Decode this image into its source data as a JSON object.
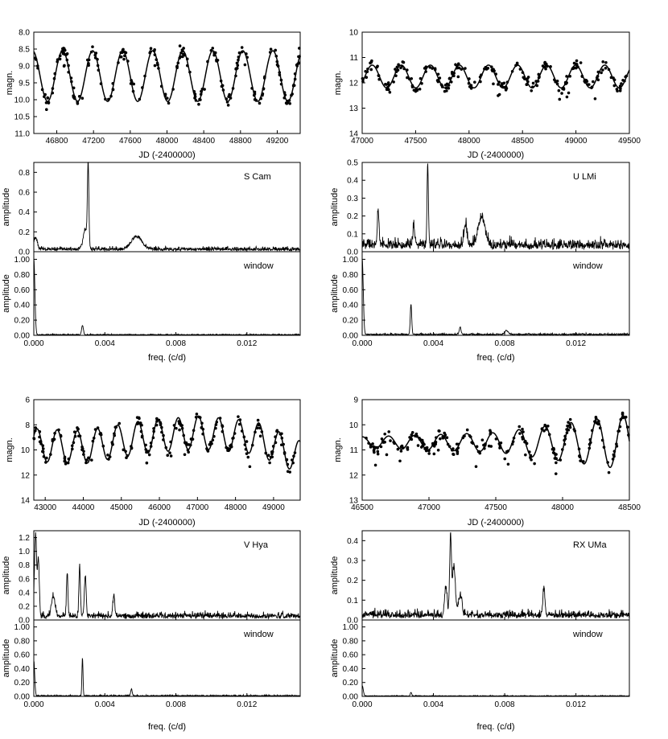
{
  "chart_data": [
    {
      "type": "scatter",
      "star": "S Cam",
      "xlabel": "JD (-2400000)",
      "ylabel": "magn.",
      "xlim": [
        46550,
        49450
      ],
      "ylim": [
        8.0,
        11.0
      ],
      "y_inverted": true,
      "xticks": [
        46800,
        47200,
        47600,
        48000,
        48400,
        48800,
        49200
      ],
      "yticks": [
        8.0,
        8.5,
        9.0,
        9.5,
        10.0,
        10.5,
        11.0
      ],
      "ytick_labels": [
        "8.0",
        "8.5",
        "9.0",
        "9.5",
        "10.0",
        "10.5",
        "11.0"
      ],
      "curve": {
        "mean": 9.3,
        "components": [
          {
            "period": 327,
            "amp": 0.75,
            "phase": 46700
          }
        ]
      },
      "spectrum": {
        "label": "S Cam",
        "xlabel": "freq. (c/d)",
        "ylabel": "amplitude",
        "xlim": [
          0,
          0.015
        ],
        "ylim": [
          0,
          0.9
        ],
        "yticks": [
          0.0,
          0.2,
          0.4,
          0.6,
          0.8
        ],
        "ytick_labels": [
          "0.0",
          "0.2",
          "0.4",
          "0.6",
          "0.8"
        ],
        "noise": 0.03,
        "peaks": [
          {
            "f": 0.00306,
            "a": 0.82,
            "w": 4e-05
          },
          {
            "f": 0.0029,
            "a": 0.2,
            "w": 0.00012
          },
          {
            "f": 0.0058,
            "a": 0.13,
            "w": 0.0003
          },
          {
            "f": 0.0001,
            "a": 0.12,
            "w": 0.0001
          }
        ]
      },
      "window": {
        "label": "window",
        "xlabel": "freq. (c/d)",
        "ylabel": "amplitude",
        "xlim": [
          0,
          0.015
        ],
        "ylim": [
          0,
          1.1
        ],
        "yticks": [
          0.0,
          0.2,
          0.4,
          0.6,
          0.8,
          1.0
        ],
        "ytick_labels": [
          "0.00",
          "0.20",
          "0.40",
          "0.60",
          "0.80",
          "1.00"
        ],
        "xticks": [
          0.0,
          0.004,
          0.008,
          0.012
        ],
        "xtick_labels": [
          "0.000",
          "0.004",
          "0.008",
          "0.012"
        ],
        "noise": 0.01,
        "peaks": [
          {
            "f": 0.0,
            "a": 1.0,
            "w": 6e-05
          },
          {
            "f": 0.00274,
            "a": 0.12,
            "w": 5e-05
          }
        ]
      }
    },
    {
      "type": "scatter",
      "star": "U LMi",
      "xlabel": "JD (-2400000)",
      "ylabel": "magn.",
      "xlim": [
        47000,
        49500
      ],
      "ylim": [
        10,
        14
      ],
      "y_inverted": true,
      "xticks": [
        47000,
        47500,
        48000,
        48500,
        49000,
        49500
      ],
      "yticks": [
        10,
        11,
        12,
        13,
        14
      ],
      "ytick_labels": [
        "10",
        "11",
        "12",
        "13",
        "14"
      ],
      "curve": {
        "mean": 11.75,
        "components": [
          {
            "period": 272,
            "amp": 0.45,
            "phase": 47230
          }
        ]
      },
      "spectrum": {
        "label": "U LMi",
        "xlabel": "freq. (c/d)",
        "ylabel": "amplitude",
        "xlim": [
          0,
          0.015
        ],
        "ylim": [
          0,
          0.5
        ],
        "yticks": [
          0.0,
          0.1,
          0.2,
          0.3,
          0.4,
          0.5
        ],
        "ytick_labels": [
          "0.0",
          "0.1",
          "0.2",
          "0.3",
          "0.4",
          "0.5"
        ],
        "noise": 0.045,
        "peaks": [
          {
            "f": 0.00368,
            "a": 0.44,
            "w": 4e-05
          },
          {
            "f": 0.0009,
            "a": 0.18,
            "w": 5e-05
          },
          {
            "f": 0.0067,
            "a": 0.15,
            "w": 0.0002
          },
          {
            "f": 0.0029,
            "a": 0.12,
            "w": 5e-05
          },
          {
            "f": 0.0058,
            "a": 0.12,
            "w": 8e-05
          }
        ]
      },
      "window": {
        "label": "window",
        "xlabel": "freq. (c/d)",
        "ylabel": "amplitude",
        "xlim": [
          0,
          0.015
        ],
        "ylim": [
          0,
          1.1
        ],
        "yticks": [
          0.0,
          0.2,
          0.4,
          0.6,
          0.8,
          1.0
        ],
        "ytick_labels": [
          "0.00",
          "0.20",
          "0.40",
          "0.60",
          "0.80",
          "1.00"
        ],
        "xticks": [
          0.0,
          0.004,
          0.008,
          0.012
        ],
        "xtick_labels": [
          "0.000",
          "0.004",
          "0.008",
          "0.012"
        ],
        "noise": 0.015,
        "peaks": [
          {
            "f": 0.0,
            "a": 1.0,
            "w": 6e-05
          },
          {
            "f": 0.00274,
            "a": 0.4,
            "w": 4e-05
          },
          {
            "f": 0.0055,
            "a": 0.1,
            "w": 5e-05
          },
          {
            "f": 0.0081,
            "a": 0.05,
            "w": 0.0001
          }
        ]
      }
    },
    {
      "type": "scatter",
      "star": "V Hya",
      "xlabel": "JD (-2400000)",
      "ylabel": "magn.",
      "xlim": [
        42700,
        49700
      ],
      "ylim": [
        6,
        14
      ],
      "y_inverted": true,
      "xticks": [
        43000,
        44000,
        45000,
        46000,
        47000,
        48000,
        49000
      ],
      "yticks": [
        6,
        8,
        10,
        12,
        14
      ],
      "ytick_labels": [
        "6",
        "8",
        "10",
        "12",
        "14"
      ],
      "curve": {
        "mean": 9.0,
        "components": [
          {
            "period": 530,
            "amp": 1.3,
            "phase": 43050
          }
        ],
        "trend": [
          {
            "x": 42700,
            "d": 0.6
          },
          {
            "x": 44000,
            "d": 0.8
          },
          {
            "x": 45500,
            "d": 0.0
          },
          {
            "x": 47000,
            "d": -0.4
          },
          {
            "x": 48500,
            "d": 0.0
          },
          {
            "x": 49700,
            "d": 1.6
          }
        ]
      },
      "spectrum": {
        "label": "V Hya",
        "xlabel": "freq. (c/d)",
        "ylabel": "amplitude",
        "xlim": [
          0,
          0.015
        ],
        "ylim": [
          0,
          1.3
        ],
        "yticks": [
          0.0,
          0.2,
          0.4,
          0.6,
          0.8,
          1.0,
          1.2
        ],
        "ytick_labels": [
          "0.0",
          "0.2",
          "0.4",
          "0.6",
          "0.8",
          "1.0",
          "1.2"
        ],
        "noise": 0.07,
        "peaks": [
          {
            "f": 0.0001,
            "a": 1.2,
            "w": 6e-05
          },
          {
            "f": 0.00026,
            "a": 0.8,
            "w": 5e-05
          },
          {
            "f": 0.00188,
            "a": 0.62,
            "w": 4e-05
          },
          {
            "f": 0.00258,
            "a": 0.75,
            "w": 4e-05
          },
          {
            "f": 0.0029,
            "a": 0.6,
            "w": 5e-05
          },
          {
            "f": 0.0045,
            "a": 0.3,
            "w": 5e-05
          },
          {
            "f": 0.0011,
            "a": 0.3,
            "w": 0.0001
          }
        ]
      },
      "window": {
        "label": "window",
        "xlabel": "freq. (c/d)",
        "ylabel": "amplitude",
        "xlim": [
          0,
          0.015
        ],
        "ylim": [
          0,
          1.1
        ],
        "yticks": [
          0.0,
          0.2,
          0.4,
          0.6,
          0.8,
          1.0
        ],
        "ytick_labels": [
          "0.00",
          "0.20",
          "0.40",
          "0.60",
          "0.80",
          "1.00"
        ],
        "xticks": [
          0.0,
          0.004,
          0.008,
          0.012
        ],
        "xtick_labels": [
          "0.000",
          "0.004",
          "0.008",
          "0.012"
        ],
        "noise": 0.012,
        "peaks": [
          {
            "f": 0.0,
            "a": 0.5,
            "w": 5e-05
          },
          {
            "f": 0.00274,
            "a": 0.55,
            "w": 3e-05
          },
          {
            "f": 0.0055,
            "a": 0.1,
            "w": 4e-05
          }
        ]
      }
    },
    {
      "type": "scatter",
      "star": "RX UMa",
      "xlabel": "JD (-2400000)",
      "ylabel": "magn.",
      "xlim": [
        46500,
        48500
      ],
      "ylim": [
        9,
        13
      ],
      "y_inverted": true,
      "xticks": [
        46500,
        47000,
        47500,
        48000,
        48500
      ],
      "yticks": [
        9,
        10,
        11,
        12,
        13
      ],
      "ytick_labels": [
        "9",
        "10",
        "11",
        "12",
        "13"
      ],
      "curve": {
        "mean": 10.7,
        "components": [
          {
            "period": 195,
            "amp": 0.55,
            "phase": 46600
          }
        ],
        "ampTrend": [
          {
            "x": 46500,
            "d": 0.4
          },
          {
            "x": 47500,
            "d": 0.7
          },
          {
            "x": 48500,
            "d": 2.0
          }
        ]
      },
      "spectrum": {
        "label": "RX UMa",
        "xlabel": "freq. (c/d)",
        "ylabel": "amplitude",
        "xlim": [
          0,
          0.015
        ],
        "ylim": [
          0,
          0.45
        ],
        "yticks": [
          0.0,
          0.1,
          0.2,
          0.3,
          0.4
        ],
        "ytick_labels": [
          "0.0",
          "0.1",
          "0.2",
          "0.3",
          "0.4"
        ],
        "noise": 0.03,
        "peaks": [
          {
            "f": 0.00496,
            "a": 0.39,
            "w": 5e-05
          },
          {
            "f": 0.00515,
            "a": 0.25,
            "w": 8e-05
          },
          {
            "f": 0.0047,
            "a": 0.15,
            "w": 7e-05
          },
          {
            "f": 0.0102,
            "a": 0.13,
            "w": 6e-05
          },
          {
            "f": 0.0055,
            "a": 0.1,
            "w": 0.0001
          }
        ]
      },
      "window": {
        "label": "window",
        "xlabel": "freq. (c/d)",
        "ylabel": "amplitude",
        "xlim": [
          0,
          0.015
        ],
        "ylim": [
          0,
          1.1
        ],
        "yticks": [
          0.0,
          0.2,
          0.4,
          0.6,
          0.8,
          1.0
        ],
        "ytick_labels": [
          "0.00",
          "0.20",
          "0.40",
          "0.60",
          "0.80",
          "1.00"
        ],
        "xticks": [
          0.0,
          0.004,
          0.008,
          0.012
        ],
        "xtick_labels": [
          "0.000",
          "0.004",
          "0.008",
          "0.012"
        ],
        "noise": 0.008,
        "peaks": [
          {
            "f": 0.0,
            "a": 0.15,
            "w": 6e-05
          },
          {
            "f": 0.00274,
            "a": 0.05,
            "w": 4e-05
          }
        ]
      }
    }
  ]
}
